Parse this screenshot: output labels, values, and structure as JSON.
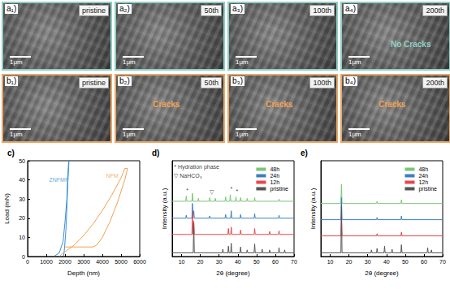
{
  "rows": [
    {
      "border_color": "#8fcfc4",
      "annotation_color": "#8fcfc4",
      "panels": [
        {
          "label": "a₁)",
          "tag": "pristine",
          "scale_bar": "1μm"
        },
        {
          "label": "a₂)",
          "tag": "50th",
          "scale_bar": "1μm"
        },
        {
          "label": "a₃)",
          "tag": "100th",
          "scale_bar": "1μm"
        },
        {
          "label": "a₄)",
          "tag": "200th",
          "scale_bar": "1μm",
          "annotation": "No Cracks"
        }
      ]
    },
    {
      "border_color": "#e9a868",
      "annotation_color": "#f0a050",
      "panels": [
        {
          "label": "b₁)",
          "tag": "pristine",
          "scale_bar": "1μm"
        },
        {
          "label": "b₂)",
          "tag": "50th",
          "scale_bar": "1μm",
          "annotation": "Cracks"
        },
        {
          "label": "b₃)",
          "tag": "100th",
          "scale_bar": "1μm",
          "annotation": "Cracks"
        },
        {
          "label": "b₄)",
          "tag": "200th",
          "scale_bar": "1μm",
          "annotation": "Cracks"
        }
      ]
    }
  ],
  "chart_data": [
    {
      "type": "line",
      "title": "c)",
      "xlabel": "Depth (nm)",
      "ylabel": "Load (mN)",
      "xlim": [
        0,
        6000
      ],
      "xticks": [
        0,
        1000,
        2000,
        3000,
        4000,
        5000,
        6000
      ],
      "ylim": [
        0,
        50
      ],
      "yticks": [
        0,
        10,
        20,
        30,
        40,
        50
      ],
      "grid": false,
      "series": [
        {
          "name": "ZNFMF",
          "color": "#3a8fd6",
          "x": [
            1400,
            1700,
            1900,
            2000,
            2100,
            2150,
            2200,
            2210,
            2150,
            2100,
            2050,
            1980,
            1930
          ],
          "values": [
            0,
            2,
            8,
            18,
            30,
            42,
            50,
            49,
            38,
            25,
            14,
            5,
            0
          ]
        },
        {
          "name": "NFM",
          "color": "#f0a050",
          "x": [
            1700,
            1800,
            2000,
            2500,
            3000,
            3500,
            4000,
            4500,
            5000,
            5200,
            5350,
            5200,
            4800,
            4400,
            4000,
            3700,
            3500,
            2000
          ],
          "values": [
            0,
            1,
            2.5,
            6,
            11,
            17,
            24,
            32,
            41,
            46,
            46,
            40,
            28,
            18,
            10,
            6,
            5,
            5
          ]
        }
      ],
      "annotations": [
        {
          "text": "ZNFMF",
          "x": 1150,
          "y": 40
        },
        {
          "text": "NFM",
          "x": 4200,
          "y": 42
        }
      ]
    },
    {
      "type": "line",
      "title": "d)",
      "xlabel": "2θ (degree)",
      "ylabel": "Intensity (a.u.)",
      "xlim": [
        5,
        70
      ],
      "xticks": [
        10,
        20,
        30,
        40,
        50,
        60,
        70
      ],
      "ylim": [
        0,
        130
      ],
      "tick_labels": "x",
      "grid": false,
      "legend": "upper right",
      "series": [
        {
          "name": "48h",
          "color": "#7cc576",
          "x": [
            5,
            12.2,
            12.5,
            12.8,
            15.5,
            15.8,
            16.1,
            18.7,
            19,
            19.3,
            24.7,
            25,
            25.3,
            27.7,
            28,
            28.3,
            33.2,
            33.5,
            33.8,
            35.7,
            36,
            36.3,
            38.7,
            39,
            39.3,
            41.2,
            41.5,
            41.8,
            44.7,
            45,
            45.3,
            48.7,
            49,
            49.3,
            61.7,
            62,
            62.3,
            70
          ],
          "values": [
            75,
            75,
            82,
            75,
            75,
            86,
            75,
            75,
            79,
            75,
            75,
            80,
            75,
            75,
            79,
            75,
            75,
            81,
            75,
            75,
            84,
            75,
            75,
            81,
            75,
            75,
            80,
            75,
            75,
            79,
            75,
            75,
            80,
            75,
            75,
            78,
            75,
            75
          ]
        },
        {
          "name": "24h",
          "color": "#3b7fc4",
          "x": [
            5,
            12.2,
            12.5,
            12.8,
            15.5,
            15.8,
            16.1,
            16.2,
            16.5,
            16.8,
            24.7,
            25,
            25.3,
            33.2,
            33.5,
            33.8,
            36.2,
            36.5,
            36.8,
            41.2,
            41.5,
            41.8,
            48.7,
            49,
            49.3,
            61.7,
            62,
            62.3,
            70
          ],
          "values": [
            52,
            52,
            56,
            52,
            52,
            72,
            52,
            52,
            62,
            52,
            52,
            55,
            52,
            52,
            57,
            52,
            52,
            62,
            52,
            52,
            57,
            52,
            52,
            58,
            52,
            52,
            56,
            52,
            52
          ]
        },
        {
          "name": "12h",
          "color": "#e8474b",
          "x": [
            5,
            15.5,
            15.8,
            16.1,
            16.2,
            16.5,
            16.8,
            34.7,
            35,
            35.3,
            36.2,
            36.5,
            36.8,
            41.2,
            41.5,
            41.8,
            48.7,
            49,
            49.3,
            56.7,
            57,
            57.3,
            61.7,
            62,
            62.3,
            70
          ],
          "values": [
            30,
            30,
            60,
            30,
            30,
            48,
            30,
            30,
            38,
            30,
            30,
            40,
            30,
            30,
            36,
            30,
            30,
            38,
            30,
            30,
            34,
            30,
            30,
            35,
            30,
            30
          ]
        },
        {
          "name": "pristine",
          "color": "#555555",
          "x": [
            5,
            16.2,
            16.5,
            16.8,
            31.7,
            32,
            32.3,
            34.7,
            35,
            35.3,
            36.2,
            36.5,
            36.8,
            41.2,
            41.5,
            41.8,
            44.7,
            45,
            45.3,
            48.7,
            49,
            49.3,
            52.7,
            53,
            53.3,
            56.7,
            57,
            57.3,
            61.7,
            62,
            62.3,
            64.7,
            65,
            65.3,
            70
          ],
          "values": [
            5,
            5,
            45,
            5,
            5,
            10,
            5,
            5,
            14,
            5,
            5,
            18,
            5,
            5,
            13,
            5,
            5,
            9,
            5,
            5,
            17,
            5,
            5,
            10,
            5,
            5,
            9,
            5,
            5,
            12,
            5,
            5,
            9,
            5,
            5
          ]
        }
      ],
      "annotations": [
        {
          "text": "* Hydration phase",
          "x": 6,
          "y": 122
        },
        {
          "text": "▽ NaHCO₃",
          "x": 6,
          "y": 110
        },
        {
          "text": "*",
          "x": 12.5,
          "y": 90
        },
        {
          "text": "▽",
          "x": 25,
          "y": 88
        },
        {
          "text": "*",
          "x": 36,
          "y": 92
        },
        {
          "text": "*",
          "x": 39,
          "y": 89
        }
      ]
    },
    {
      "type": "line",
      "title": "e)",
      "xlabel": "2θ (degree)",
      "ylabel": "Intensity (a.u.)",
      "xlim": [
        5,
        70
      ],
      "xticks": [
        10,
        20,
        30,
        40,
        50,
        60,
        70
      ],
      "ylim": [
        0,
        130
      ],
      "tick_labels": "x",
      "grid": false,
      "legend": "upper right",
      "series": [
        {
          "name": "48h",
          "color": "#7cc576",
          "x": [
            5,
            15.7,
            16,
            16.3,
            34.7,
            35,
            35.3,
            47.7,
            48,
            48.3,
            70
          ],
          "values": [
            72,
            72,
            98,
            72,
            72,
            75,
            72,
            72,
            77,
            72,
            72
          ]
        },
        {
          "name": "24h",
          "color": "#3b7fc4",
          "x": [
            5,
            15.7,
            16,
            16.3,
            34.7,
            35,
            35.3,
            47.7,
            48,
            48.3,
            70
          ],
          "values": [
            50,
            50,
            80,
            50,
            50,
            53,
            50,
            50,
            55,
            50,
            50
          ]
        },
        {
          "name": "12h",
          "color": "#e8474b",
          "x": [
            5,
            15.7,
            16,
            16.3,
            34.7,
            35,
            35.3,
            47.7,
            48,
            48.3,
            70
          ],
          "values": [
            28,
            28,
            55,
            28,
            28,
            31,
            28,
            28,
            33,
            28,
            28
          ]
        },
        {
          "name": "pristine",
          "color": "#555555",
          "x": [
            5,
            15.7,
            16,
            16.3,
            31.7,
            32,
            32.3,
            34.7,
            35,
            35.3,
            38.7,
            39,
            39.3,
            42.7,
            43,
            43.3,
            47.7,
            48,
            48.3,
            61.7,
            62,
            62.3,
            63.7,
            64,
            64.3,
            70
          ],
          "values": [
            5,
            5,
            70,
            5,
            5,
            9,
            5,
            5,
            11,
            5,
            5,
            14,
            5,
            5,
            10,
            5,
            5,
            16,
            5,
            5,
            12,
            5,
            5,
            9,
            5,
            5
          ]
        }
      ]
    }
  ]
}
